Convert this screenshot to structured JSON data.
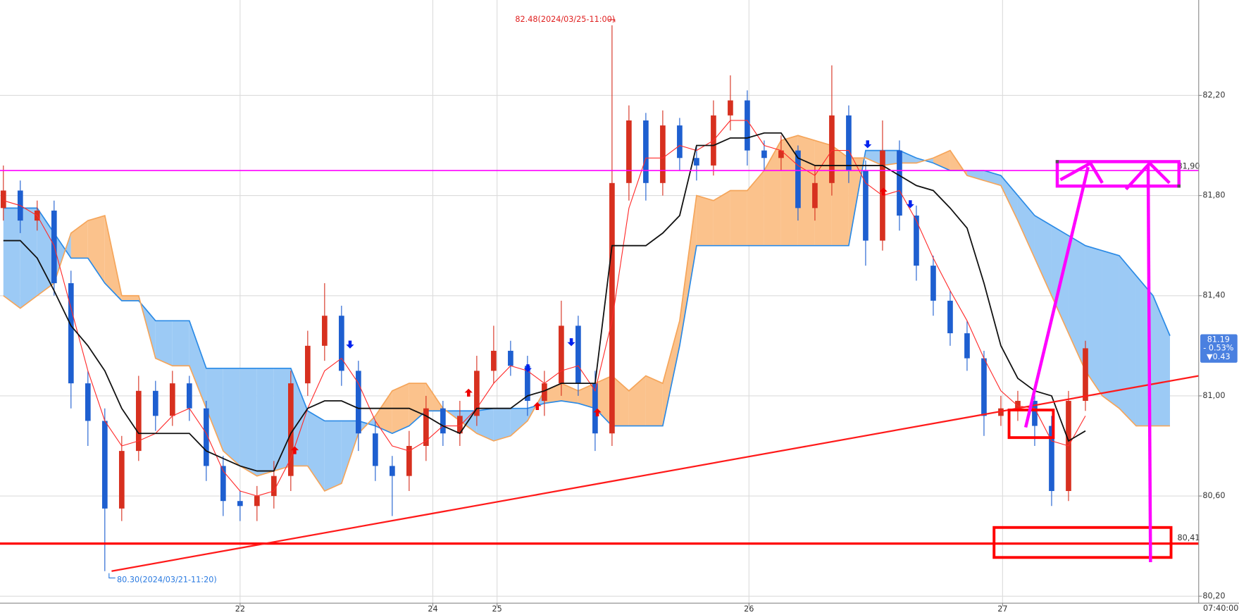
{
  "chart_data": {
    "type": "candlestick",
    "x": [
      0,
      1,
      2,
      3,
      4,
      5,
      6,
      7,
      8,
      9,
      10,
      11,
      12,
      13,
      14,
      15,
      16,
      17,
      18,
      19,
      20,
      21,
      22,
      23,
      24,
      25,
      26,
      27,
      28,
      29,
      30,
      31,
      32,
      33,
      34,
      35,
      36,
      37,
      38,
      39,
      40,
      41,
      42,
      43,
      44,
      45,
      46,
      47,
      48,
      49,
      50,
      51,
      52,
      53,
      54,
      55,
      56,
      57,
      58,
      59,
      60,
      61,
      62,
      63,
      64
    ],
    "open": [
      81.75,
      81.82,
      81.7,
      81.74,
      81.45,
      81.05,
      80.9,
      80.55,
      80.78,
      81.02,
      80.92,
      81.05,
      80.95,
      80.72,
      80.58,
      80.56,
      80.6,
      80.68,
      81.05,
      81.2,
      81.32,
      81.1,
      80.85,
      80.72,
      80.68,
      80.8,
      80.95,
      80.85,
      80.92,
      81.1,
      81.18,
      81.12,
      80.98,
      81.05,
      81.28,
      81.05,
      80.85,
      81.85,
      82.1,
      81.85,
      82.08,
      81.95,
      81.92,
      82.12,
      82.18,
      81.98,
      81.95,
      81.98,
      81.75,
      81.85,
      82.12,
      81.9,
      81.62,
      81.98,
      81.72,
      81.52,
      81.38,
      81.25,
      81.15,
      80.92,
      80.95,
      80.98,
      80.88,
      80.62,
      80.98
    ],
    "high": [
      81.92,
      81.86,
      81.78,
      81.78,
      81.5,
      81.1,
      80.95,
      80.84,
      81.08,
      81.06,
      81.1,
      81.08,
      80.98,
      80.76,
      80.62,
      80.64,
      80.74,
      81.1,
      81.26,
      81.45,
      81.36,
      81.14,
      80.9,
      80.76,
      80.86,
      81.0,
      80.98,
      80.98,
      81.16,
      81.28,
      81.22,
      81.16,
      81.1,
      81.38,
      81.32,
      81.1,
      82.48,
      82.16,
      82.13,
      82.14,
      82.11,
      82.0,
      82.18,
      82.28,
      82.22,
      82.02,
      82.04,
      82.0,
      81.92,
      82.32,
      82.16,
      81.94,
      82.1,
      82.02,
      81.76,
      81.56,
      81.42,
      81.3,
      81.18,
      81.0,
      81.02,
      81.01,
      80.92,
      81.02,
      81.22
    ],
    "low": [
      81.7,
      81.65,
      81.66,
      81.4,
      80.95,
      80.8,
      80.3,
      80.5,
      80.74,
      80.86,
      80.88,
      80.9,
      80.66,
      80.52,
      80.5,
      80.5,
      80.55,
      80.62,
      81.0,
      81.14,
      81.04,
      80.78,
      80.66,
      80.52,
      80.62,
      80.74,
      80.8,
      80.8,
      80.88,
      81.05,
      81.08,
      80.92,
      80.92,
      81.0,
      81.0,
      80.78,
      80.8,
      81.78,
      81.78,
      81.8,
      81.9,
      81.86,
      81.88,
      82.06,
      81.92,
      81.9,
      81.9,
      81.7,
      81.7,
      81.8,
      81.85,
      81.52,
      81.58,
      81.66,
      81.46,
      81.32,
      81.2,
      81.1,
      80.84,
      80.88,
      80.9,
      80.8,
      80.56,
      80.58,
      80.94
    ],
    "close": [
      81.82,
      81.7,
      81.74,
      81.45,
      81.05,
      80.9,
      80.55,
      80.78,
      81.02,
      80.92,
      81.05,
      80.95,
      80.72,
      80.58,
      80.56,
      80.6,
      80.68,
      81.05,
      81.2,
      81.32,
      81.1,
      80.85,
      80.72,
      80.68,
      80.8,
      80.95,
      80.85,
      80.92,
      81.1,
      81.18,
      81.12,
      80.98,
      81.05,
      81.28,
      81.05,
      80.85,
      81.85,
      82.1,
      81.85,
      82.08,
      81.95,
      81.92,
      82.12,
      82.18,
      81.98,
      81.95,
      81.98,
      81.75,
      81.85,
      82.12,
      81.9,
      81.62,
      81.98,
      81.72,
      81.52,
      81.38,
      81.25,
      81.15,
      80.92,
      80.95,
      80.98,
      80.88,
      80.62,
      80.98,
      81.19
    ],
    "up_color": "#d7301f",
    "down_color": "#1e5fd0",
    "lines": [
      {
        "color": "#ff2a2a",
        "values": [
          81.78,
          81.76,
          81.72,
          81.6,
          81.35,
          81.1,
          80.9,
          80.8,
          80.82,
          80.85,
          80.92,
          80.95,
          80.85,
          80.7,
          80.62,
          80.6,
          80.62,
          80.75,
          80.95,
          81.1,
          81.15,
          81.05,
          80.9,
          80.8,
          80.78,
          80.82,
          80.88,
          80.88,
          80.95,
          81.05,
          81.12,
          81.1,
          81.05,
          81.1,
          81.12,
          81.02,
          81.3,
          81.75,
          81.95,
          81.95,
          82.0,
          81.98,
          82.02,
          82.1,
          82.1,
          82.0,
          81.98,
          81.92,
          81.88,
          81.98,
          81.98,
          81.85,
          81.8,
          81.82,
          81.7,
          81.55,
          81.42,
          81.3,
          81.15,
          81.02,
          80.96,
          80.95,
          80.82,
          80.8,
          80.92
        ]
      },
      {
        "color": "#111111",
        "values": [
          81.62,
          81.62,
          81.55,
          81.42,
          81.28,
          81.2,
          81.1,
          80.95,
          80.85,
          80.85,
          80.85,
          80.85,
          80.78,
          80.75,
          80.72,
          80.7,
          80.7,
          80.85,
          80.95,
          80.98,
          80.98,
          80.95,
          80.95,
          80.95,
          80.95,
          80.92,
          80.88,
          80.85,
          80.95,
          80.95,
          80.95,
          81.0,
          81.02,
          81.05,
          81.05,
          81.05,
          81.6,
          81.6,
          81.6,
          81.65,
          81.72,
          82.0,
          82.0,
          82.03,
          82.03,
          82.05,
          82.05,
          81.95,
          81.92,
          81.92,
          81.92,
          81.92,
          81.92,
          81.88,
          81.84,
          81.82,
          81.75,
          81.67,
          81.45,
          81.2,
          81.07,
          81.02,
          81.0,
          80.82,
          80.86
        ]
      }
    ],
    "cloud": {
      "x": [
        0,
        1,
        2,
        3,
        4,
        5,
        6,
        7,
        8,
        9,
        10,
        11,
        12,
        13,
        14,
        15,
        16,
        17,
        18,
        19,
        20,
        21,
        22,
        23,
        24,
        25,
        26,
        27,
        28,
        29,
        30,
        31,
        32,
        33,
        34,
        35,
        36,
        37,
        38,
        39,
        40,
        41,
        42,
        43,
        44,
        45,
        46,
        47,
        48,
        49,
        50,
        51,
        52,
        53,
        54,
        55,
        56,
        57,
        58,
        59,
        60,
        61,
        62,
        63,
        64,
        65,
        66,
        67,
        68,
        69
      ],
      "a": {
        "color": "#2a8ae6",
        "fill": "#9ccaf5",
        "values": [
          81.75,
          81.75,
          81.75,
          81.65,
          81.55,
          81.55,
          81.45,
          81.38,
          81.38,
          81.3,
          81.3,
          81.3,
          81.11,
          81.11,
          81.11,
          81.11,
          81.11,
          81.11,
          80.94,
          80.9,
          80.9,
          80.9,
          80.88,
          80.85,
          80.88,
          80.94,
          80.94,
          80.94,
          80.94,
          80.95,
          80.95,
          80.95,
          80.97,
          80.98,
          80.97,
          80.95,
          80.88,
          80.88,
          80.88,
          80.88,
          81.2,
          81.6,
          81.6,
          81.6,
          81.6,
          81.6,
          81.6,
          81.6,
          81.6,
          81.6,
          81.6,
          81.98,
          81.98,
          81.98,
          81.95,
          81.93,
          81.9,
          81.9,
          81.9,
          81.88,
          81.8,
          81.72,
          81.68,
          81.64,
          81.6,
          81.58,
          81.56,
          81.48,
          81.4,
          81.24
        ]
      },
      "b": {
        "color": "#f5a55a",
        "fill": "#fbc28c",
        "values": [
          81.4,
          81.35,
          81.4,
          81.45,
          81.65,
          81.7,
          81.72,
          81.4,
          81.4,
          81.15,
          81.12,
          81.12,
          80.95,
          80.78,
          80.72,
          80.68,
          80.7,
          80.72,
          80.72,
          80.62,
          80.65,
          80.85,
          80.92,
          81.02,
          81.05,
          81.05,
          80.95,
          80.9,
          80.85,
          80.82,
          80.84,
          80.9,
          81.02,
          81.05,
          81.02,
          81.05,
          81.08,
          81.02,
          81.08,
          81.05,
          81.3,
          81.8,
          81.78,
          81.82,
          81.82,
          81.9,
          82.02,
          82.04,
          82.02,
          82.0,
          81.95,
          81.95,
          81.92,
          81.93,
          81.93,
          81.95,
          81.98,
          81.88,
          81.86,
          81.84,
          81.7,
          81.55,
          81.4,
          81.25,
          81.1,
          81.0,
          80.95,
          80.88,
          80.88,
          80.88
        ]
      }
    },
    "trendline": {
      "color": "#ff1a1a",
      "x": [
        6.4,
        70.7
      ],
      "values": [
        80.3,
        81.08
      ]
    },
    "levels": [
      {
        "value": 81.9,
        "label": "81,90",
        "color": "#ff00ff",
        "width": 1.5
      },
      {
        "value": 80.41,
        "label": "80,41",
        "color": "#ff0000",
        "width": 3
      }
    ],
    "xlim": [
      -0.2,
      70.7
    ],
    "xticks": [
      {
        "value": 14,
        "label": "22"
      },
      {
        "value": 25.4,
        "label": "24"
      },
      {
        "value": 29.2,
        "label": "25"
      },
      {
        "value": 44.1,
        "label": "26"
      },
      {
        "value": 59.1,
        "label": "27"
      }
    ],
    "ylim": [
      80.172,
      82.581
    ],
    "yticks": [
      {
        "value": 82.2,
        "label": "82,20"
      },
      {
        "value": 81.8,
        "label": "81,80"
      },
      {
        "value": 81.4,
        "label": "81,40"
      },
      {
        "value": 81.0,
        "label": "81,00"
      },
      {
        "value": 80.6,
        "label": "80,60"
      },
      {
        "value": 80.2,
        "label": "80,20"
      }
    ],
    "grid": true,
    "annotations": [
      "82.48(2024/03/25-11:00)",
      "80.30(2024/03/21-11:20)"
    ],
    "price_tag": {
      "price": "81.19",
      "change_pct": "- 0.53%",
      "change": "▼0.43",
      "color": "#4a80e0"
    },
    "time_label": "07:40:00"
  }
}
